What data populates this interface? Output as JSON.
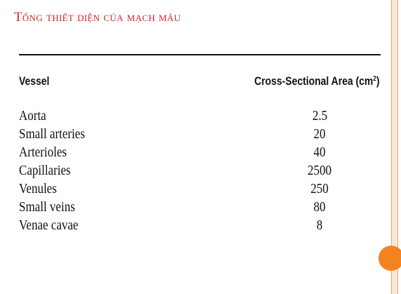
{
  "slide": {
    "title": "Tổng thiết diện của mạch máu"
  },
  "table": {
    "headers": {
      "vessel": "Vessel",
      "area_prefix": "Cross-Sectional Area (cm",
      "area_superscript": "2",
      "area_suffix": ")"
    },
    "rows": [
      {
        "vessel": "Aorta",
        "area": "2.5"
      },
      {
        "vessel": "Small arteries",
        "area": "20"
      },
      {
        "vessel": "Arterioles",
        "area": "40"
      },
      {
        "vessel": "Capillaries",
        "area": "2500"
      },
      {
        "vessel": "Venules",
        "area": "250"
      },
      {
        "vessel": "Small veins",
        "area": "80"
      },
      {
        "vessel": "Venae cavae",
        "area": "8"
      }
    ]
  },
  "colors": {
    "title": "#c8282e",
    "accent": "#f58220",
    "rail": "#fbe6d6",
    "text": "#111111"
  }
}
